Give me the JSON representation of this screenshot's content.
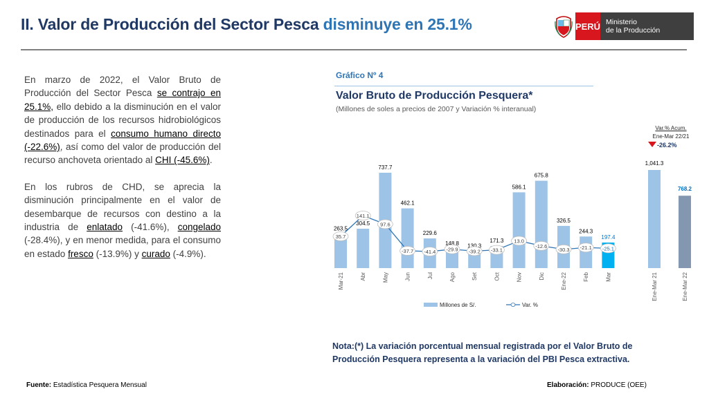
{
  "header": {
    "title_main": "II. Valor de Producción del Sector Pesca",
    "title_highlight": "disminuye en 25.1%",
    "logo_country": "PERÚ",
    "logo_ministry_line1": "Ministerio",
    "logo_ministry_line2": "de la Producción"
  },
  "text": {
    "p1_a": "En marzo de 2022, el Valor Bruto de Producción del Sector Pesca ",
    "p1_b": "se contrajo en 25.1%,",
    "p1_c": " ello debido a la disminución en el valor de producción de los recursos hidrobiológicos destinados para el ",
    "p1_d": "consumo humano directo (-22.6%)",
    "p1_e": ", así como del valor de producción del recurso anchoveta orientado al ",
    "p1_f": "CHI (-45.6%)",
    "p1_g": ".",
    "p2_a": "En los rubros de CHD, se aprecia la disminución principalmente en el valor de desembarque de recursos con destino a la industria de ",
    "p2_b": "enlatado",
    "p2_c": " (-41.6%), ",
    "p2_d": "congelado",
    "p2_e": " (-28.4%), y en menor medida, para el consumo en estado ",
    "p2_f": "fresco",
    "p2_g": " (-13.9%) y ",
    "p2_h": "curado",
    "p2_i": " (-4.9%)."
  },
  "graph": {
    "label": "Gráfico Nº 4",
    "title": "Valor Bruto de Producción Pesquera*",
    "subtitle": "(Millones de soles a precios de 2007 y Variación % interanual)",
    "acum_label_1": "Var.% Acum.",
    "acum_label_2": "Ene-Mar 22/21",
    "acum_value": "-26.2%"
  },
  "chart_data": {
    "type": "bar",
    "categories": [
      "Mar-21",
      "Abr",
      "May",
      "Jun",
      "Jul",
      "Ago",
      "Set",
      "Oct",
      "Nov",
      "Dic",
      "Ene-22",
      "Feb",
      "Mar"
    ],
    "series": [
      {
        "name": "Millones de S/.",
        "type": "bar",
        "values": [
          263.5,
          304.5,
          737.7,
          462.1,
          229.6,
          148.8,
          130.3,
          171.3,
          586.1,
          675.8,
          326.5,
          244.3,
          197.4
        ]
      },
      {
        "name": "Var. %",
        "type": "line",
        "values": [
          35.7,
          141.1,
          97.6,
          -37.7,
          -41.4,
          -29.9,
          -39.2,
          -33.1,
          13.0,
          -12.6,
          -30.3,
          -21.1,
          -25.1
        ]
      }
    ],
    "value_labels": [
      "263.5",
      "304.5",
      "737.7",
      "462.1",
      "229.6",
      "148.8",
      "130.3",
      "171.3",
      "586.1",
      "675.8",
      "326.5",
      "244.3",
      "197.4"
    ],
    "var_labels": [
      "35.7",
      "141.1",
      "97.6",
      "-37.7",
      "-41.4",
      "-29.9",
      "-39.2",
      "-33.1",
      "13.0",
      "-12.6",
      "-30.3",
      "-21.1",
      "-25.1"
    ],
    "cumulative": {
      "categories": [
        "Ene-Mar 21",
        "Ene-Mar 22"
      ],
      "values": [
        1041.3,
        768.2
      ],
      "value_labels": [
        "1,041.3",
        "768.2"
      ]
    },
    "legend": [
      "Millones de S/.",
      "Var. %"
    ],
    "legend_position": "bottom",
    "colors": {
      "bar": "#9dc3e6",
      "bar_highlight": "#00b0f0",
      "cum_2021": "#9dc3e6",
      "cum_2022": "#8497b0",
      "line": "#2e75b6",
      "highlight_text": "#0070c0"
    }
  },
  "footer": {
    "nota": "Nota:(*) La variación porcentual mensual registrada por el Valor Bruto de Producción Pesquera representa a la variación del PBI Pesca extractiva.",
    "fuente_label": "Fuente:",
    "fuente_value": " Estadística Pesquera Mensual",
    "elab_label": "Elaboración:",
    "elab_value": " PRODUCE (OEE)"
  }
}
